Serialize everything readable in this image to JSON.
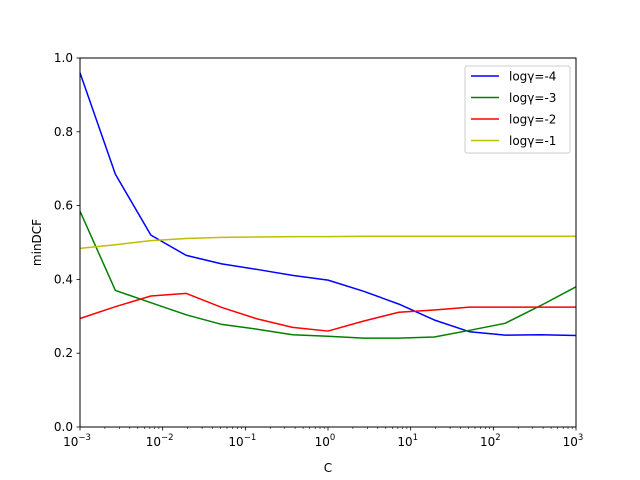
{
  "chart_data": {
    "type": "line",
    "title": "",
    "xlabel": "C",
    "ylabel": "minDCF",
    "xscale": "log",
    "xlim": [
      0.001,
      1000
    ],
    "ylim": [
      0.0,
      1.0
    ],
    "grid": false,
    "legend_position": "upper right",
    "x": [
      0.001,
      0.00268,
      0.0072,
      0.0193,
      0.0518,
      0.139,
      0.373,
      1.0,
      2.68,
      7.2,
      19.3,
      51.8,
      139,
      373,
      1000
    ],
    "x_ticks": [
      {
        "base": "10",
        "exp": "−3"
      },
      {
        "base": "10",
        "exp": "−2"
      },
      {
        "base": "10",
        "exp": "−1"
      },
      {
        "base": "10",
        "exp": "0"
      },
      {
        "base": "10",
        "exp": "1"
      },
      {
        "base": "10",
        "exp": "2"
      },
      {
        "base": "10",
        "exp": "3"
      }
    ],
    "y_ticks": [
      "0.0",
      "0.2",
      "0.4",
      "0.6",
      "0.8",
      "1.0"
    ],
    "series": [
      {
        "name": "logγ=-4",
        "color": "#0000ff",
        "values": [
          0.96,
          0.685,
          0.52,
          0.465,
          0.442,
          0.427,
          0.411,
          0.398,
          0.368,
          0.333,
          0.29,
          0.258,
          0.249,
          0.25,
          0.248
        ]
      },
      {
        "name": "logγ=-3",
        "color": "#008000",
        "values": [
          0.585,
          0.37,
          0.337,
          0.304,
          0.278,
          0.265,
          0.25,
          0.246,
          0.241,
          0.241,
          0.244,
          0.262,
          0.281,
          0.329,
          0.38
        ]
      },
      {
        "name": "logγ=-2",
        "color": "#ff0000",
        "values": [
          0.294,
          0.326,
          0.355,
          0.362,
          0.324,
          0.293,
          0.27,
          0.26,
          0.287,
          0.311,
          0.317,
          0.325,
          0.325,
          0.325,
          0.325
        ]
      },
      {
        "name": "logγ=-1",
        "color": "#bfbf00",
        "values": [
          0.484,
          0.494,
          0.505,
          0.511,
          0.514,
          0.515,
          0.516,
          0.516,
          0.517,
          0.517,
          0.517,
          0.517,
          0.517,
          0.517,
          0.517
        ]
      }
    ]
  }
}
